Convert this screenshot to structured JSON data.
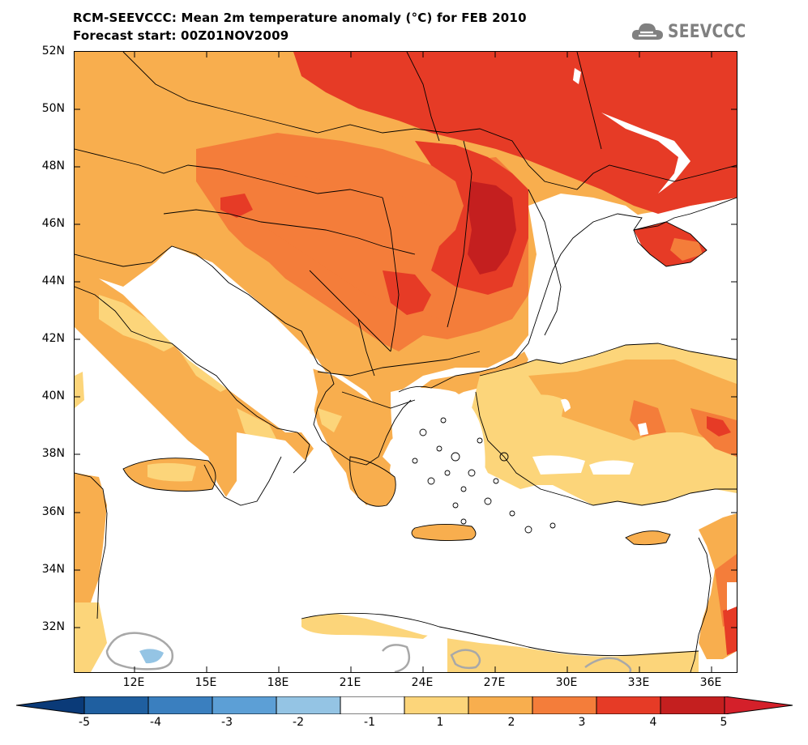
{
  "title_line1": "RCM-SEEVCCC: Mean 2m temperature anomaly (°C) for FEB 2010",
  "title_line2": "Forecast start: 00Z01NOV2009",
  "logo": {
    "text": "SEEVCCC",
    "icon": "cloud-logo-icon",
    "color": "#808080"
  },
  "map": {
    "lat_labels": [
      "52N",
      "50N",
      "48N",
      "46N",
      "44N",
      "42N",
      "40N",
      "38N",
      "36N",
      "34N",
      "32N"
    ],
    "lon_labels": [
      "12E",
      "15E",
      "18E",
      "21E",
      "24E",
      "27E",
      "30E",
      "33E",
      "36E"
    ],
    "lat_range": [
      30.5,
      52
    ],
    "lon_range": [
      9.5,
      37
    ]
  },
  "colorbar": {
    "labels": [
      "-5",
      "-4",
      "-3",
      "-2",
      "-1",
      "1",
      "2",
      "3",
      "4",
      "5"
    ],
    "colors": [
      "#1f5fa0",
      "#3a7fbf",
      "#5c9fd6",
      "#94c4e4",
      "#ffffff",
      "#fcd57a",
      "#f8ae4e",
      "#f47d3a",
      "#e63b26",
      "#c41f1f"
    ],
    "low_arrow_color": "#0a3a78",
    "high_arrow_color": "#d4202a"
  }
}
